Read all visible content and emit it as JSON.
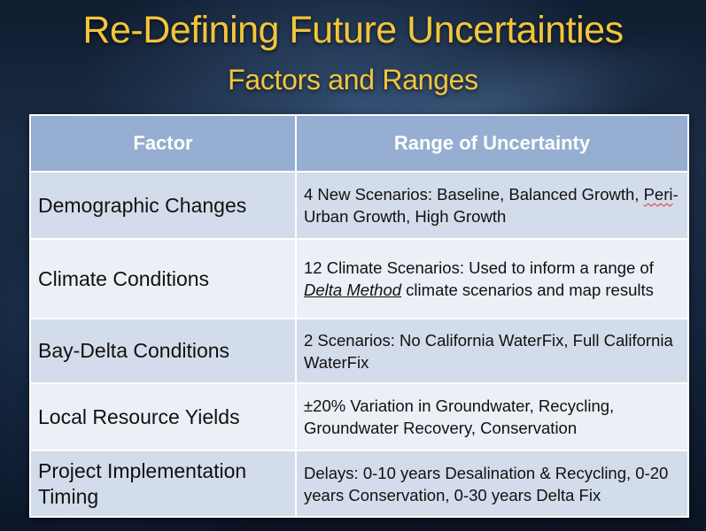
{
  "slide": {
    "title": "Re-Defining Future Uncertainties",
    "subtitle": "Factors and Ranges"
  },
  "table": {
    "headers": {
      "factor": "Factor",
      "range": "Range of Uncertainty"
    },
    "rows": [
      {
        "factor": "Demographic Changes",
        "range_lead": "4 New Scenarios: Baseline, Balanced Growth, ",
        "range_flagged": "Peri",
        "range_tail": "-Urban Growth, High Growth"
      },
      {
        "factor": "Climate Conditions",
        "range_lead": "12 Climate Scenarios: Used to inform a range of ",
        "range_emphasis": "Delta Method",
        "range_tail": " climate scenarios and map results"
      },
      {
        "factor": "Bay-Delta Conditions",
        "range": "2 Scenarios: No California WaterFix, Full California WaterFix"
      },
      {
        "factor": "Local Resource Yields",
        "range": "±20% Variation in Groundwater, Recycling, Groundwater Recovery, Conservation"
      },
      {
        "factor": "Project Implementation Timing",
        "range": "Delays: 0-10 years Desalination & Recycling, 0-20 years Conservation, 0-30 years Delta Fix"
      }
    ]
  }
}
